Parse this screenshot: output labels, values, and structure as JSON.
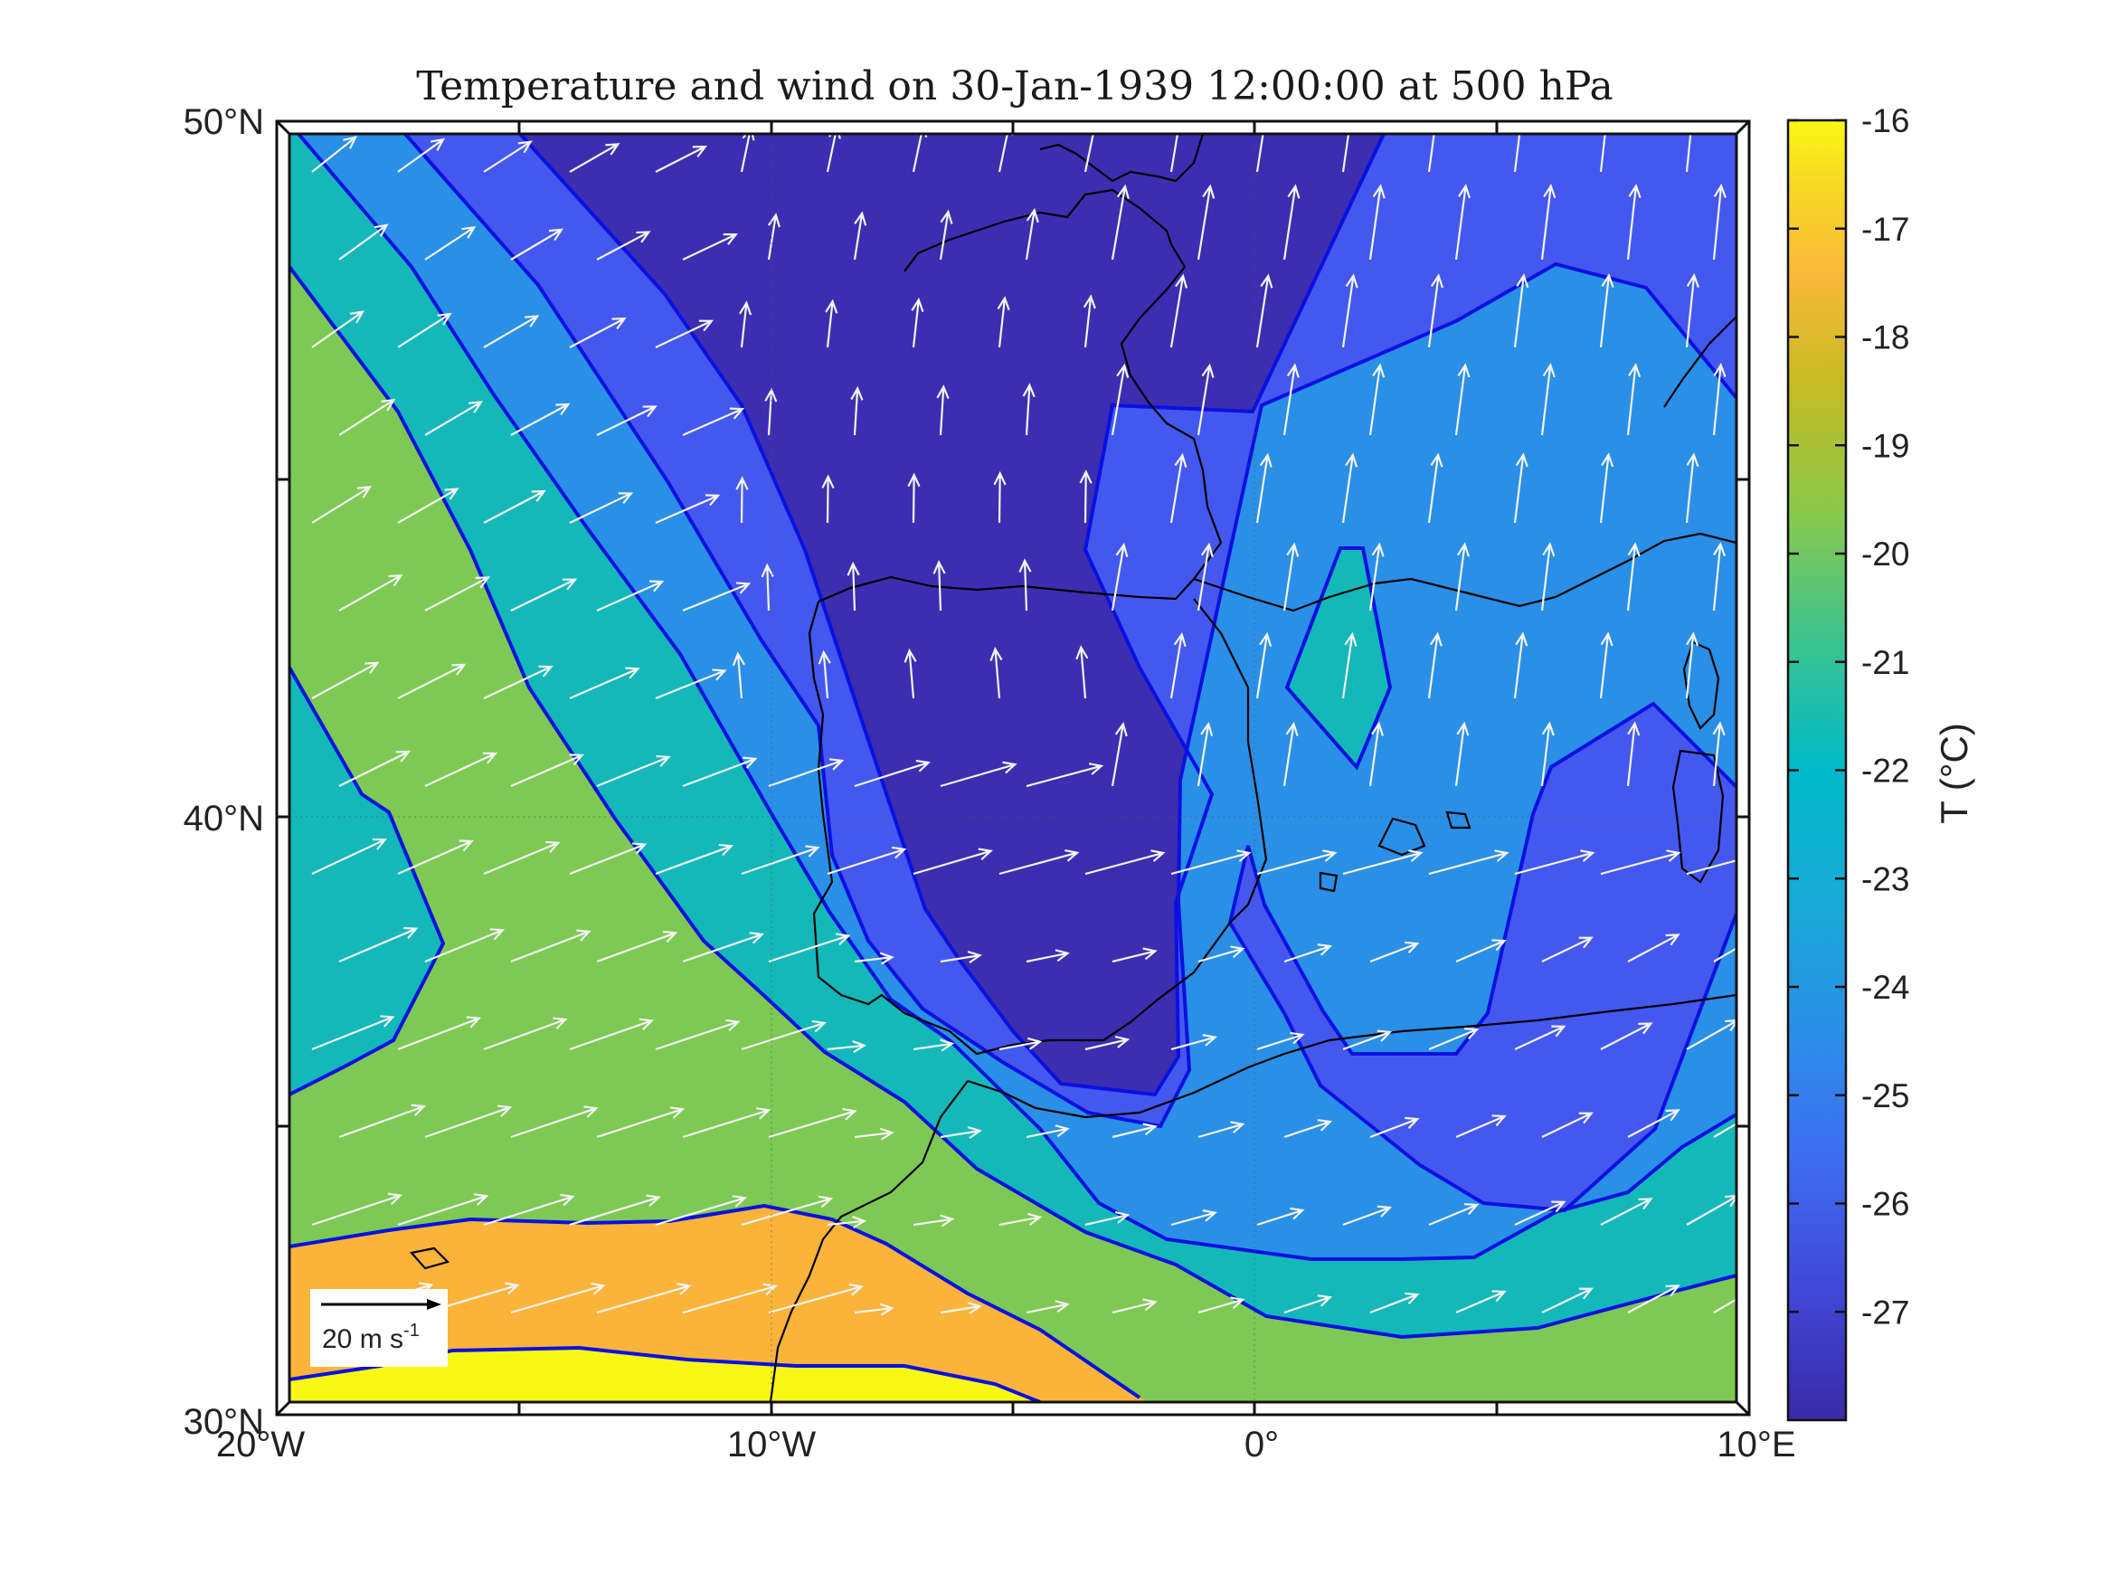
{
  "title": "Temperature and wind on 30-Jan-1939 12:00:00 at 500 hPa",
  "map": {
    "lon_ticks": [
      "20°W",
      "10°W",
      "0°",
      "10°E"
    ],
    "lat_ticks": [
      "30°N",
      "40°N",
      "50°N"
    ],
    "extent": {
      "lon": [
        -20,
        10
      ],
      "lat": [
        30,
        50
      ]
    }
  },
  "colorbar": {
    "label": "T (°C)",
    "range": [
      -28,
      -16
    ],
    "ticks": [
      "-16",
      "-17",
      "-18",
      "-19",
      "-20",
      "-21",
      "-22",
      "-23",
      "-24",
      "-25",
      "-26",
      "-27"
    ]
  },
  "wind_scale": {
    "label": "20 m s",
    "unit_exponent": "-1"
  },
  "colors": {
    "band_lt_-27": "#3d2db0",
    "band_-27_-26": "#4458f0",
    "band_-26_-24": "#2a8fe6",
    "band_-24_-22": "#14b8b8",
    "band_-22_-20": "#7dc954",
    "band_-20_-18": "#fbb43a",
    "band_gt_-18": "#f8f814",
    "contour_line": "#0a10e0",
    "wind_arrow": "#f4f4f4",
    "coastline": "#000000"
  }
}
